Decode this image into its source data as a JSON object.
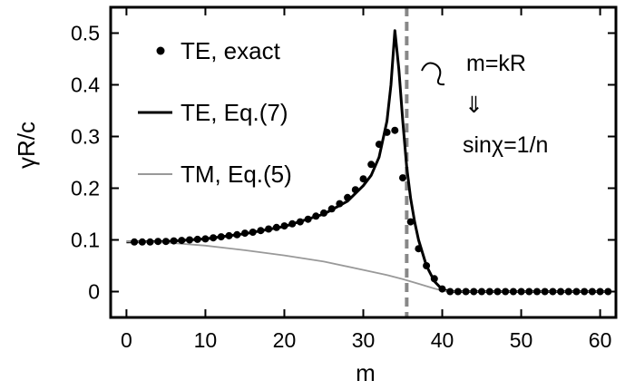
{
  "chart_data": {
    "type": "line",
    "title": "",
    "xlabel": "m",
    "ylabel": "γR/c",
    "xlim": [
      -2,
      62
    ],
    "ylim": [
      -0.05,
      0.55
    ],
    "xticks": [
      0,
      10,
      20,
      30,
      40,
      50,
      60
    ],
    "xtick_labels": [
      "0",
      "10",
      "20",
      "30",
      "40",
      "50",
      "60"
    ],
    "yticks": [
      0,
      0.1,
      0.2,
      0.3,
      0.4,
      0.5
    ],
    "ytick_labels": [
      "0",
      "0.1",
      "0.2",
      "0.3",
      "0.4",
      "0.5"
    ],
    "grid": false,
    "legend_position": "top-left",
    "series": [
      {
        "name": "TE, exact",
        "style": "points",
        "color": "#000000",
        "x": [
          1,
          2,
          3,
          4,
          5,
          6,
          7,
          8,
          9,
          10,
          11,
          12,
          13,
          14,
          15,
          16,
          17,
          18,
          19,
          20,
          21,
          22,
          23,
          24,
          25,
          26,
          27,
          28,
          29,
          30,
          31,
          32,
          33,
          34,
          35,
          36,
          37,
          38,
          39,
          40,
          41,
          42,
          43,
          44,
          45,
          46,
          47,
          48,
          49,
          50,
          51,
          52,
          53,
          54,
          55,
          56,
          57,
          58,
          59,
          60,
          61
        ],
        "y": [
          0.096,
          0.096,
          0.096,
          0.097,
          0.097,
          0.098,
          0.099,
          0.1,
          0.101,
          0.102,
          0.104,
          0.106,
          0.108,
          0.11,
          0.113,
          0.115,
          0.118,
          0.121,
          0.124,
          0.127,
          0.131,
          0.135,
          0.14,
          0.146,
          0.152,
          0.16,
          0.17,
          0.182,
          0.197,
          0.218,
          0.246,
          0.285,
          0.308,
          0.312,
          0.22,
          0.135,
          0.083,
          0.05,
          0.025,
          0.005,
          0.0,
          0.0,
          0.0,
          0.0,
          0.0,
          0.0,
          0.0,
          0.0,
          0.0,
          0.0,
          0.0,
          0.0,
          0.0,
          0.0,
          0.0,
          0.0,
          0.0,
          0.0,
          0.0,
          0.0,
          0.0
        ]
      },
      {
        "name": "TE, Eq.(7)",
        "style": "line",
        "color": "#000000",
        "x": [
          0,
          5,
          10,
          15,
          20,
          25,
          28,
          30,
          31,
          32,
          33,
          33.5,
          34,
          34.5,
          35,
          35.5,
          36,
          36.5,
          37,
          38,
          39,
          40,
          41,
          45,
          50,
          55,
          60,
          61
        ],
        "y": [
          0.096,
          0.097,
          0.102,
          0.112,
          0.126,
          0.15,
          0.175,
          0.205,
          0.225,
          0.26,
          0.33,
          0.4,
          0.505,
          0.43,
          0.33,
          0.24,
          0.18,
          0.135,
          0.1,
          0.05,
          0.02,
          0.004,
          0.0,
          0.0,
          0.0,
          0.0,
          0.0,
          0.0
        ]
      },
      {
        "name": "TM, Eq.(5)",
        "style": "line",
        "color": "#999999",
        "x": [
          0,
          5,
          10,
          15,
          20,
          25,
          30,
          33,
          35,
          37,
          39,
          40,
          41,
          45,
          50,
          55,
          60,
          61
        ],
        "y": [
          0.097,
          0.095,
          0.089,
          0.08,
          0.07,
          0.058,
          0.042,
          0.032,
          0.024,
          0.015,
          0.006,
          0.002,
          0.0,
          0.0,
          0.0,
          0.0,
          0.0,
          0.0
        ]
      }
    ],
    "reference_lines": [
      {
        "orientation": "vertical",
        "x": 35.5,
        "style": "dashed",
        "color": "#888888"
      }
    ],
    "annotations": [
      {
        "text": "m=kR"
      },
      {
        "text": "⇓"
      },
      {
        "text": "sinχ=1/n"
      }
    ]
  }
}
